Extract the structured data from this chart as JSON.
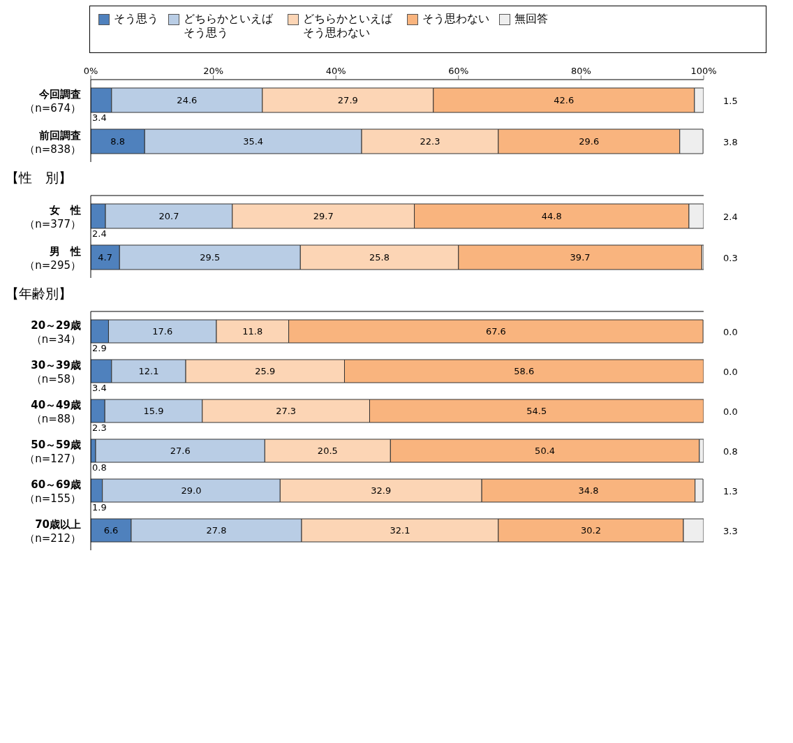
{
  "chart_data": [
    {
      "type": "bar",
      "orientation": "horizontal",
      "stacked": true,
      "legend": "top",
      "data_labels": true,
      "categories": [
        "今回調査（n=674）",
        "前回調査（n=838）"
      ],
      "xlim": [
        0,
        100
      ],
      "xticks": [
        {
          "value": 0,
          "label": "0%"
        },
        {
          "value": 20,
          "label": "20%"
        },
        {
          "value": 40,
          "label": "40%"
        },
        {
          "value": 60,
          "label": "60%"
        },
        {
          "value": 80,
          "label": "80%"
        },
        {
          "value": 100,
          "label": "100%"
        }
      ],
      "series": [
        {
          "name": "そう思う",
          "color": "#4f81bd",
          "values": [
            3.4,
            8.8
          ],
          "value_labels": [
            "3.4",
            "8.8"
          ]
        },
        {
          "name": "どちらかといえばそう思う",
          "color": "#b9cde5",
          "values": [
            24.6,
            35.4
          ],
          "value_labels": [
            "24.6",
            "35.4"
          ]
        },
        {
          "name": "どちらかといえばそう思わない",
          "color": "#fcd5b5",
          "values": [
            27.9,
            22.3
          ],
          "value_labels": [
            "27.9",
            "22.3"
          ]
        },
        {
          "name": "そう思わない",
          "color": "#f9b47e",
          "values": [
            42.6,
            29.6
          ],
          "value_labels": [
            "42.6",
            "29.6"
          ]
        },
        {
          "name": "無回答",
          "color": "#eeeeee",
          "values": [
            1.5,
            3.8
          ],
          "value_labels": [
            "1.5",
            "3.8"
          ]
        }
      ]
    },
    {
      "type": "bar",
      "orientation": "horizontal",
      "stacked": true,
      "title": "【性　別】",
      "data_labels": true,
      "tick_labels": "y",
      "categories": [
        "女　性（n=377）",
        "男　性（n=295）"
      ],
      "xlim": [
        0,
        100
      ],
      "series": [
        {
          "color": "#4f81bd",
          "values": [
            2.4,
            4.7
          ],
          "value_labels": [
            "2.4",
            "4.7"
          ]
        },
        {
          "color": "#b9cde5",
          "values": [
            20.7,
            29.5
          ],
          "value_labels": [
            "20.7",
            "29.5"
          ]
        },
        {
          "color": "#fcd5b5",
          "values": [
            29.7,
            25.8
          ],
          "value_labels": [
            "29.7",
            "25.8"
          ]
        },
        {
          "color": "#f9b47e",
          "values": [
            44.8,
            39.7
          ],
          "value_labels": [
            "44.8",
            "39.7"
          ]
        },
        {
          "color": "#eeeeee",
          "values": [
            2.4,
            0.3
          ],
          "value_labels": [
            "2.4",
            "0.3"
          ]
        }
      ]
    },
    {
      "type": "bar",
      "orientation": "horizontal",
      "stacked": true,
      "title": "【年齢別】",
      "data_labels": true,
      "tick_labels": "y",
      "categories": [
        "20～29歳（n=34）",
        "30～39歳（n=58）",
        "40～49歳（n=88）",
        "50～59歳（n=127）",
        "60～69歳（n=155）",
        "70歳以上（n=212）"
      ],
      "xlim": [
        0,
        100
      ],
      "series": [
        {
          "color": "#4f81bd",
          "values": [
            2.9,
            3.4,
            2.3,
            0.8,
            1.9,
            6.6
          ],
          "value_labels": [
            "2.9",
            "3.4",
            "2.3",
            "0.8",
            "1.9",
            "6.6"
          ]
        },
        {
          "color": "#b9cde5",
          "values": [
            17.6,
            12.1,
            15.9,
            27.6,
            29.0,
            27.8
          ],
          "value_labels": [
            "17.6",
            "12.1",
            "15.9",
            "27.6",
            "29.0",
            "27.8"
          ]
        },
        {
          "color": "#fcd5b5",
          "values": [
            11.8,
            25.9,
            27.3,
            20.5,
            32.9,
            32.1
          ],
          "value_labels": [
            "11.8",
            "25.9",
            "27.3",
            "20.5",
            "32.9",
            "32.1"
          ]
        },
        {
          "color": "#f9b47e",
          "values": [
            67.6,
            58.6,
            54.5,
            50.4,
            34.8,
            30.2
          ],
          "value_labels": [
            "67.6",
            "58.6",
            "54.5",
            "50.4",
            "34.8",
            "30.2"
          ]
        },
        {
          "color": "#eeeeee",
          "values": [
            0.0,
            0.0,
            0.0,
            0.8,
            1.3,
            3.3
          ],
          "value_labels": [
            "0.0",
            "0.0",
            "0.0",
            "0.8",
            "1.3",
            "3.3"
          ]
        }
      ]
    }
  ]
}
